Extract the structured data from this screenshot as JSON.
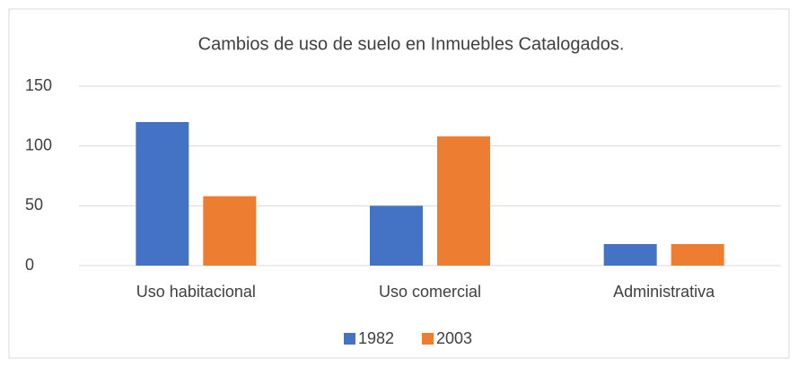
{
  "chart_data": {
    "type": "bar",
    "title": "Cambios de uso de suelo en Inmuebles Catalogados.",
    "categories": [
      "Uso habitacional",
      "Uso comercial",
      "Administrativa"
    ],
    "series": [
      {
        "name": "1982",
        "color": "#4472c4",
        "values": [
          120,
          50,
          18
        ]
      },
      {
        "name": "2003",
        "color": "#ed7d31",
        "values": [
          58,
          108,
          18
        ]
      }
    ],
    "ylim": [
      0,
      150
    ],
    "yticks": [
      0,
      50,
      100,
      150
    ],
    "grid": true,
    "legend": "bottom"
  }
}
